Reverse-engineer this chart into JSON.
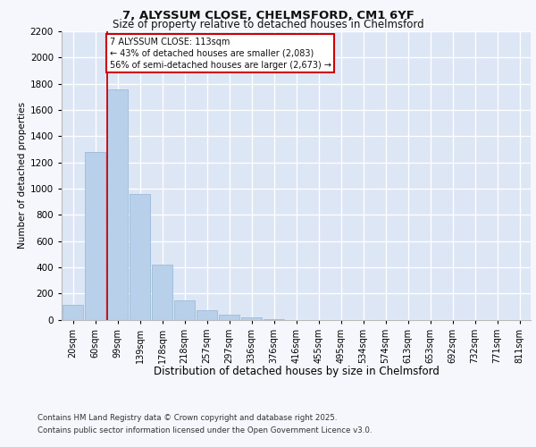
{
  "title1": "7, ALYSSUM CLOSE, CHELMSFORD, CM1 6YF",
  "title2": "Size of property relative to detached houses in Chelmsford",
  "xlabel": "Distribution of detached houses by size in Chelmsford",
  "ylabel": "Number of detached properties",
  "categories": [
    "20sqm",
    "60sqm",
    "99sqm",
    "139sqm",
    "178sqm",
    "218sqm",
    "257sqm",
    "297sqm",
    "336sqm",
    "376sqm",
    "416sqm",
    "455sqm",
    "495sqm",
    "534sqm",
    "574sqm",
    "613sqm",
    "653sqm",
    "692sqm",
    "732sqm",
    "771sqm",
    "811sqm"
  ],
  "values": [
    110,
    1280,
    1760,
    960,
    420,
    150,
    70,
    35,
    20,
    5,
    0,
    0,
    0,
    0,
    0,
    0,
    0,
    0,
    0,
    0,
    0
  ],
  "bar_color": "#b8d0ea",
  "bar_edge_color": "#9bbbd8",
  "red_line_index": 2,
  "annotation_text": "7 ALYSSUM CLOSE: 113sqm\n← 43% of detached houses are smaller (2,083)\n56% of semi-detached houses are larger (2,673) →",
  "annotation_box_color": "#ffffff",
  "annotation_box_edge": "#cc0000",
  "ylim": [
    0,
    2200
  ],
  "yticks": [
    0,
    200,
    400,
    600,
    800,
    1000,
    1200,
    1400,
    1600,
    1800,
    2000,
    2200
  ],
  "background_color": "#dde6f5",
  "grid_color": "#ffffff",
  "footer_line1": "Contains HM Land Registry data © Crown copyright and database right 2025.",
  "footer_line2": "Contains public sector information licensed under the Open Government Licence v3.0.",
  "fig_bg": "#f5f7fc"
}
